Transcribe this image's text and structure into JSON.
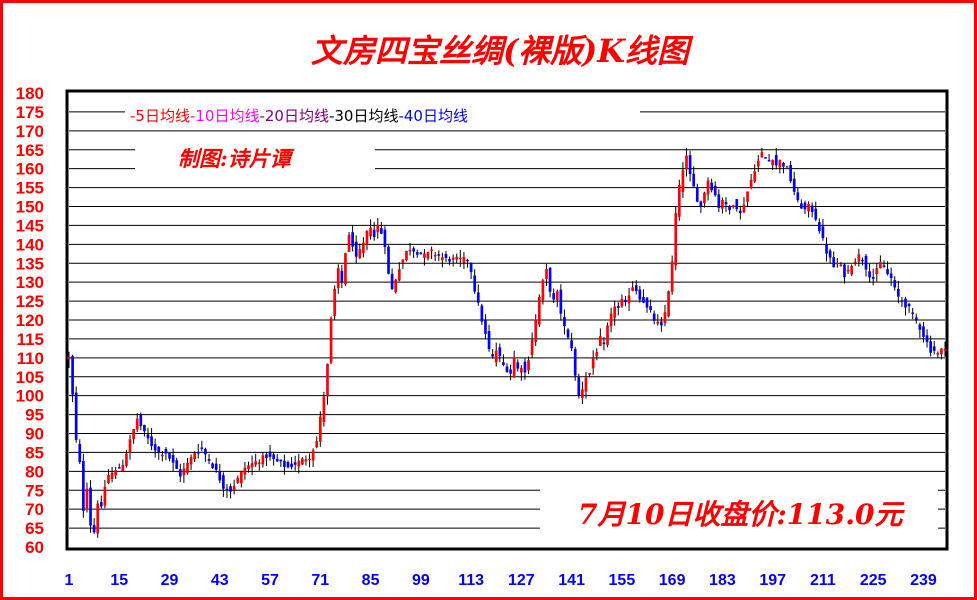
{
  "chart_data": {
    "type": "candlestick",
    "title": "文房四宝丝绸(裸版)K线图",
    "author_label": "制图:诗片谭",
    "close_label": "7月10日收盘价:113.0元",
    "legend": [
      {
        "text": "-5日均线",
        "color": "#ff0000"
      },
      {
        "text": "-10日均线",
        "color": "#ff00ff"
      },
      {
        "text": "-20日均线",
        "color": "#800080"
      },
      {
        "text": "-30日均线",
        "color": "#000000"
      },
      {
        "text": "-40日均线",
        "color": "#0000ff"
      }
    ],
    "ylim": [
      60,
      180
    ],
    "y_ticks": [
      "60",
      "65",
      "70",
      "75",
      "80",
      "85",
      "90",
      "95",
      "100",
      "105",
      "110",
      "115",
      "120",
      "125",
      "130",
      "135",
      "140",
      "145",
      "150",
      "155",
      "160",
      "165",
      "170",
      "175",
      "180"
    ],
    "xlim": [
      1,
      245
    ],
    "x_ticks": [
      "1",
      "15",
      "29",
      "43",
      "57",
      "71",
      "85",
      "99",
      "113",
      "127",
      "141",
      "155",
      "169",
      "183",
      "197",
      "211",
      "225",
      "239"
    ],
    "grid": "horizontal lines at every 5 units",
    "up_color": "#ff0000",
    "down_color": "#0000ff",
    "wick_color": "#000000",
    "close_trajectory": [
      [
        1,
        110
      ],
      [
        2,
        100
      ],
      [
        3,
        88
      ],
      [
        4,
        82
      ],
      [
        5,
        70
      ],
      [
        6,
        76
      ],
      [
        7,
        66
      ],
      [
        8,
        64
      ],
      [
        9,
        72
      ],
      [
        10,
        70
      ],
      [
        11,
        76
      ],
      [
        12,
        79
      ],
      [
        14,
        80
      ],
      [
        16,
        82
      ],
      [
        18,
        88
      ],
      [
        20,
        94
      ],
      [
        22,
        90
      ],
      [
        24,
        87
      ],
      [
        26,
        85
      ],
      [
        28,
        85
      ],
      [
        30,
        82
      ],
      [
        32,
        79
      ],
      [
        34,
        82
      ],
      [
        36,
        85
      ],
      [
        38,
        86
      ],
      [
        40,
        83
      ],
      [
        42,
        80
      ],
      [
        44,
        76
      ],
      [
        46,
        75
      ],
      [
        48,
        78
      ],
      [
        50,
        81
      ],
      [
        52,
        82
      ],
      [
        54,
        83
      ],
      [
        56,
        84
      ],
      [
        58,
        83
      ],
      [
        60,
        82
      ],
      [
        62,
        81
      ],
      [
        64,
        82
      ],
      [
        66,
        83
      ],
      [
        68,
        84
      ],
      [
        70,
        88
      ],
      [
        71,
        94
      ],
      [
        72,
        100
      ],
      [
        73,
        108
      ],
      [
        74,
        120
      ],
      [
        75,
        128
      ],
      [
        76,
        133
      ],
      [
        77,
        130
      ],
      [
        78,
        138
      ],
      [
        79,
        142
      ],
      [
        80,
        140
      ],
      [
        81,
        136
      ],
      [
        82,
        138
      ],
      [
        83,
        140
      ],
      [
        84,
        143
      ],
      [
        85,
        145
      ],
      [
        86,
        142
      ],
      [
        87,
        145
      ],
      [
        88,
        143
      ],
      [
        89,
        140
      ],
      [
        90,
        132
      ],
      [
        91,
        128
      ],
      [
        92,
        131
      ],
      [
        93,
        134
      ],
      [
        94,
        136
      ],
      [
        95,
        138
      ],
      [
        96,
        139
      ],
      [
        98,
        138
      ],
      [
        100,
        137
      ],
      [
        102,
        138
      ],
      [
        104,
        137
      ],
      [
        106,
        136
      ],
      [
        108,
        136
      ],
      [
        110,
        136
      ],
      [
        112,
        136
      ],
      [
        113,
        133
      ],
      [
        114,
        128
      ],
      [
        115,
        124
      ],
      [
        116,
        120
      ],
      [
        117,
        116
      ],
      [
        118,
        112
      ],
      [
        119,
        110
      ],
      [
        120,
        112
      ],
      [
        121,
        110
      ],
      [
        122,
        108
      ],
      [
        123,
        107
      ],
      [
        124,
        106
      ],
      [
        125,
        110
      ],
      [
        126,
        107
      ],
      [
        127,
        108
      ],
      [
        128,
        106
      ],
      [
        129,
        110
      ],
      [
        130,
        115
      ],
      [
        131,
        120
      ],
      [
        132,
        126
      ],
      [
        133,
        130
      ],
      [
        134,
        133
      ],
      [
        135,
        128
      ],
      [
        136,
        125
      ],
      [
        137,
        127
      ],
      [
        138,
        122
      ],
      [
        139,
        118
      ],
      [
        140,
        115
      ],
      [
        141,
        113
      ],
      [
        142,
        105
      ],
      [
        143,
        100
      ],
      [
        144,
        102
      ],
      [
        145,
        105
      ],
      [
        146,
        106
      ],
      [
        147,
        110
      ],
      [
        148,
        112
      ],
      [
        149,
        115
      ],
      [
        150,
        113
      ],
      [
        151,
        118
      ],
      [
        152,
        121
      ],
      [
        153,
        124
      ],
      [
        154,
        123
      ],
      [
        155,
        125
      ],
      [
        156,
        124
      ],
      [
        157,
        127
      ],
      [
        158,
        129
      ],
      [
        159,
        128
      ],
      [
        160,
        126
      ],
      [
        161,
        125
      ],
      [
        162,
        123
      ],
      [
        163,
        122
      ],
      [
        164,
        120
      ],
      [
        165,
        119
      ],
      [
        166,
        118
      ],
      [
        167,
        122
      ],
      [
        168,
        128
      ],
      [
        169,
        135
      ],
      [
        170,
        148
      ],
      [
        171,
        155
      ],
      [
        172,
        160
      ],
      [
        173,
        163
      ],
      [
        174,
        158
      ],
      [
        175,
        155
      ],
      [
        176,
        152
      ],
      [
        177,
        150
      ],
      [
        178,
        154
      ],
      [
        179,
        157
      ],
      [
        180,
        155
      ],
      [
        181,
        153
      ],
      [
        182,
        150
      ],
      [
        183,
        152
      ],
      [
        184,
        150
      ],
      [
        185,
        149
      ],
      [
        186,
        151
      ],
      [
        187,
        150
      ],
      [
        188,
        148
      ],
      [
        189,
        151
      ],
      [
        190,
        154
      ],
      [
        191,
        157
      ],
      [
        192,
        160
      ],
      [
        193,
        162
      ],
      [
        194,
        164
      ],
      [
        195,
        163
      ],
      [
        196,
        162
      ],
      [
        197,
        163
      ],
      [
        198,
        161
      ],
      [
        199,
        162
      ],
      [
        200,
        161
      ],
      [
        201,
        160
      ],
      [
        202,
        157
      ],
      [
        203,
        154
      ],
      [
        204,
        151
      ],
      [
        205,
        150
      ],
      [
        206,
        149
      ],
      [
        207,
        150
      ],
      [
        208,
        149
      ],
      [
        209,
        147
      ],
      [
        210,
        144
      ],
      [
        211,
        141
      ],
      [
        212,
        138
      ],
      [
        213,
        136
      ],
      [
        214,
        134
      ],
      [
        215,
        135
      ],
      [
        216,
        134
      ],
      [
        217,
        132
      ],
      [
        218,
        133
      ],
      [
        219,
        135
      ],
      [
        220,
        136
      ],
      [
        221,
        137
      ],
      [
        222,
        136
      ],
      [
        223,
        134
      ],
      [
        224,
        132
      ],
      [
        225,
        131
      ],
      [
        226,
        133
      ],
      [
        227,
        135
      ],
      [
        228,
        134
      ],
      [
        229,
        132
      ],
      [
        230,
        131
      ],
      [
        231,
        128
      ],
      [
        232,
        126
      ],
      [
        233,
        125
      ],
      [
        234,
        124
      ],
      [
        235,
        123
      ],
      [
        236,
        121
      ],
      [
        237,
        120
      ],
      [
        238,
        118
      ],
      [
        239,
        116
      ],
      [
        240,
        114
      ],
      [
        241,
        112
      ],
      [
        242,
        112
      ],
      [
        243,
        111
      ],
      [
        244,
        112
      ],
      [
        245,
        113
      ]
    ]
  }
}
